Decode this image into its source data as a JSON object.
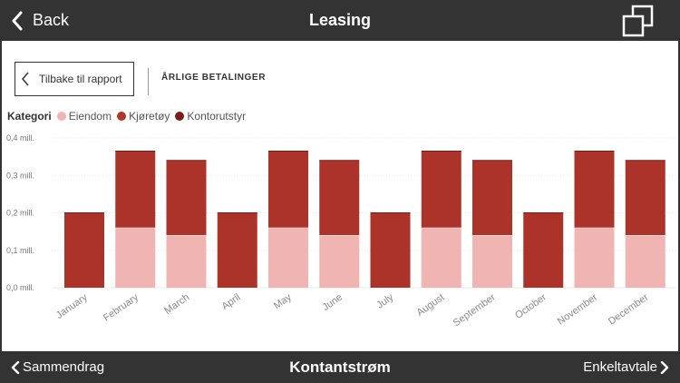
{
  "header": {
    "back_label": "Back",
    "title": "Leasing"
  },
  "report": {
    "back_button_label": "Tilbake til rapport",
    "section_title": "ÅRLIGE BETALINGER"
  },
  "legend": {
    "title": "Kategori",
    "items": [
      {
        "label": "Eiendom",
        "color": "#f0b4b3"
      },
      {
        "label": "Kjøretøy",
        "color": "#b2352b"
      },
      {
        "label": "Kontorutstyr",
        "color": "#7a1e1a"
      }
    ]
  },
  "chart_data": {
    "type": "bar",
    "stacked": true,
    "categories": [
      "January",
      "February",
      "March",
      "April",
      "May",
      "June",
      "July",
      "August",
      "September",
      "October",
      "November",
      "December"
    ],
    "series": [
      {
        "name": "Eiendom",
        "color": "#f0b4b3",
        "values": [
          0,
          0.16,
          0.14,
          0,
          0.16,
          0.14,
          0,
          0.16,
          0.14,
          0,
          0.16,
          0.14
        ]
      },
      {
        "name": "Kjøretøy",
        "color": "#ab3329",
        "values": [
          0.2,
          0.205,
          0.2,
          0.2,
          0.205,
          0.2,
          0.2,
          0.205,
          0.2,
          0.2,
          0.205,
          0.2
        ]
      }
    ],
    "ylim": [
      0,
      0.4
    ],
    "yticks": [
      0,
      0.1,
      0.2,
      0.3,
      0.4
    ],
    "ytick_labels": [
      "0,0 mill.",
      "0,1 mill.",
      "0,2 mill.",
      "0,3 mill.",
      "0,4 mill."
    ],
    "grid": true,
    "legend_position": "top-left",
    "xlabel": "",
    "ylabel": ""
  },
  "footer": {
    "prev_label": "Sammendrag",
    "title": "Kontantstrøm",
    "next_label": "Enkeltavtale"
  }
}
